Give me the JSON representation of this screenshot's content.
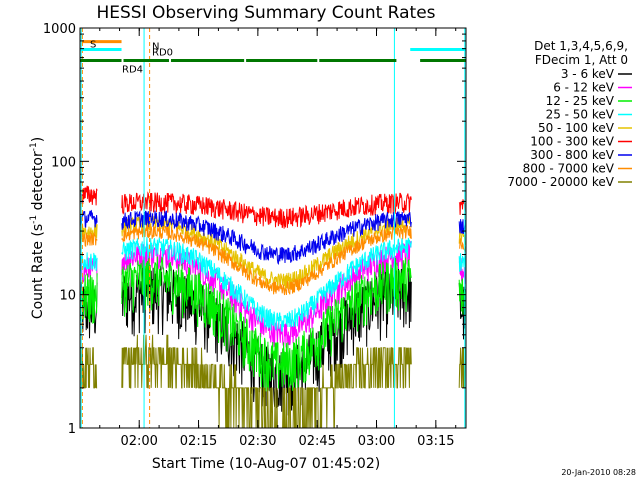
{
  "chart_data": {
    "type": "line",
    "title": "HESSI Observing Summary Count Rates",
    "xlabel": "Start Time (10-Aug-07 01:45:02)",
    "ylabel_main": "Count Rate (s",
    "ylabel_sup1": "-1",
    "ylabel_mid": " detector",
    "ylabel_sup2": "-1",
    "ylabel_end": ")",
    "yscale": "log",
    "ylim": [
      1,
      1000
    ],
    "xlim_minutes": [
      0,
      97.6
    ],
    "x_ticks": [
      {
        "label": "02:00",
        "min": 14.97
      },
      {
        "label": "02:15",
        "min": 29.97
      },
      {
        "label": "02:30",
        "min": 44.97
      },
      {
        "label": "02:45",
        "min": 59.97
      },
      {
        "label": "03:00",
        "min": 74.97
      },
      {
        "label": "03:15",
        "min": 89.97
      }
    ],
    "y_ticks": [
      {
        "label": "1",
        "value": 1
      },
      {
        "label": "10",
        "value": 10
      },
      {
        "label": "100",
        "value": 100
      },
      {
        "label": "1000",
        "value": 1000
      }
    ],
    "legend_header": [
      "Det 1,3,4,5,6,9,",
      "FDecim 1, Att 0"
    ],
    "series": [
      {
        "name": "3 - 6 keV",
        "color": "#000000",
        "base": 6.5,
        "amp": 3.4,
        "noise": 0.18
      },
      {
        "name": "6 - 12 keV",
        "color": "#ff00ff",
        "base": 12.5,
        "amp": 3.2,
        "noise": 0.08
      },
      {
        "name": "12 - 25 keV",
        "color": "#00ee00",
        "base": 8.0,
        "amp": 3.5,
        "noise": 0.15
      },
      {
        "name": "25 - 50 keV",
        "color": "#00ffff",
        "base": 14.5,
        "amp": 3.0,
        "noise": 0.06
      },
      {
        "name": "50 - 100 keV",
        "color": "#e6c200",
        "base": 24.0,
        "amp": 2.3,
        "noise": 0.05
      },
      {
        "name": "100 - 300 keV",
        "color": "#ff0000",
        "base": 45.0,
        "amp": 1.25,
        "noise": 0.06
      },
      {
        "name": "300 - 800 keV",
        "color": "#0000ee",
        "base": 30.0,
        "amp": 1.7,
        "noise": 0.05
      },
      {
        "name": "800 - 7000 keV",
        "color": "#ff8c00",
        "base": 21.0,
        "amp": 2.3,
        "noise": 0.04
      },
      {
        "name": "7000 - 20000 keV",
        "color": "#808000",
        "base": 2.4,
        "amp": 2.2,
        "noise": 0.0
      }
    ],
    "saa_gap_minutes": [
      [
        4.4,
        10.5
      ],
      [
        83.8,
        95.8
      ]
    ],
    "state_bars": [
      {
        "label": "S",
        "color": "#ff8c00",
        "value": 790,
        "segments": [
          [
            0.5,
            10.5
          ]
        ]
      },
      {
        "label": "N",
        "color": "#00ffff",
        "value": 690,
        "segments": [
          [
            0.0,
            10.5
          ],
          [
            83.5,
            97.6
          ]
        ]
      },
      {
        "label": "RD0",
        "color": "",
        "value": 600,
        "segments": []
      },
      {
        "label": "RD4",
        "color": "#007700",
        "value": 570,
        "segments": [
          [
            0.0,
            10.5
          ],
          [
            11.0,
            22.5
          ],
          [
            23.0,
            41.5
          ],
          [
            42.0,
            60.0
          ],
          [
            60.5,
            80.0
          ],
          [
            86.0,
            97.6
          ]
        ]
      }
    ],
    "vlines_cyan_minutes": [
      0.3,
      16.2,
      79.5,
      97.3
    ],
    "vlines_orange_dashed_minutes": [
      0.6,
      17.6,
      97.7
    ],
    "timestamp": "20-Jan-2010 08:28",
    "grid": false,
    "legend_position": "right"
  }
}
